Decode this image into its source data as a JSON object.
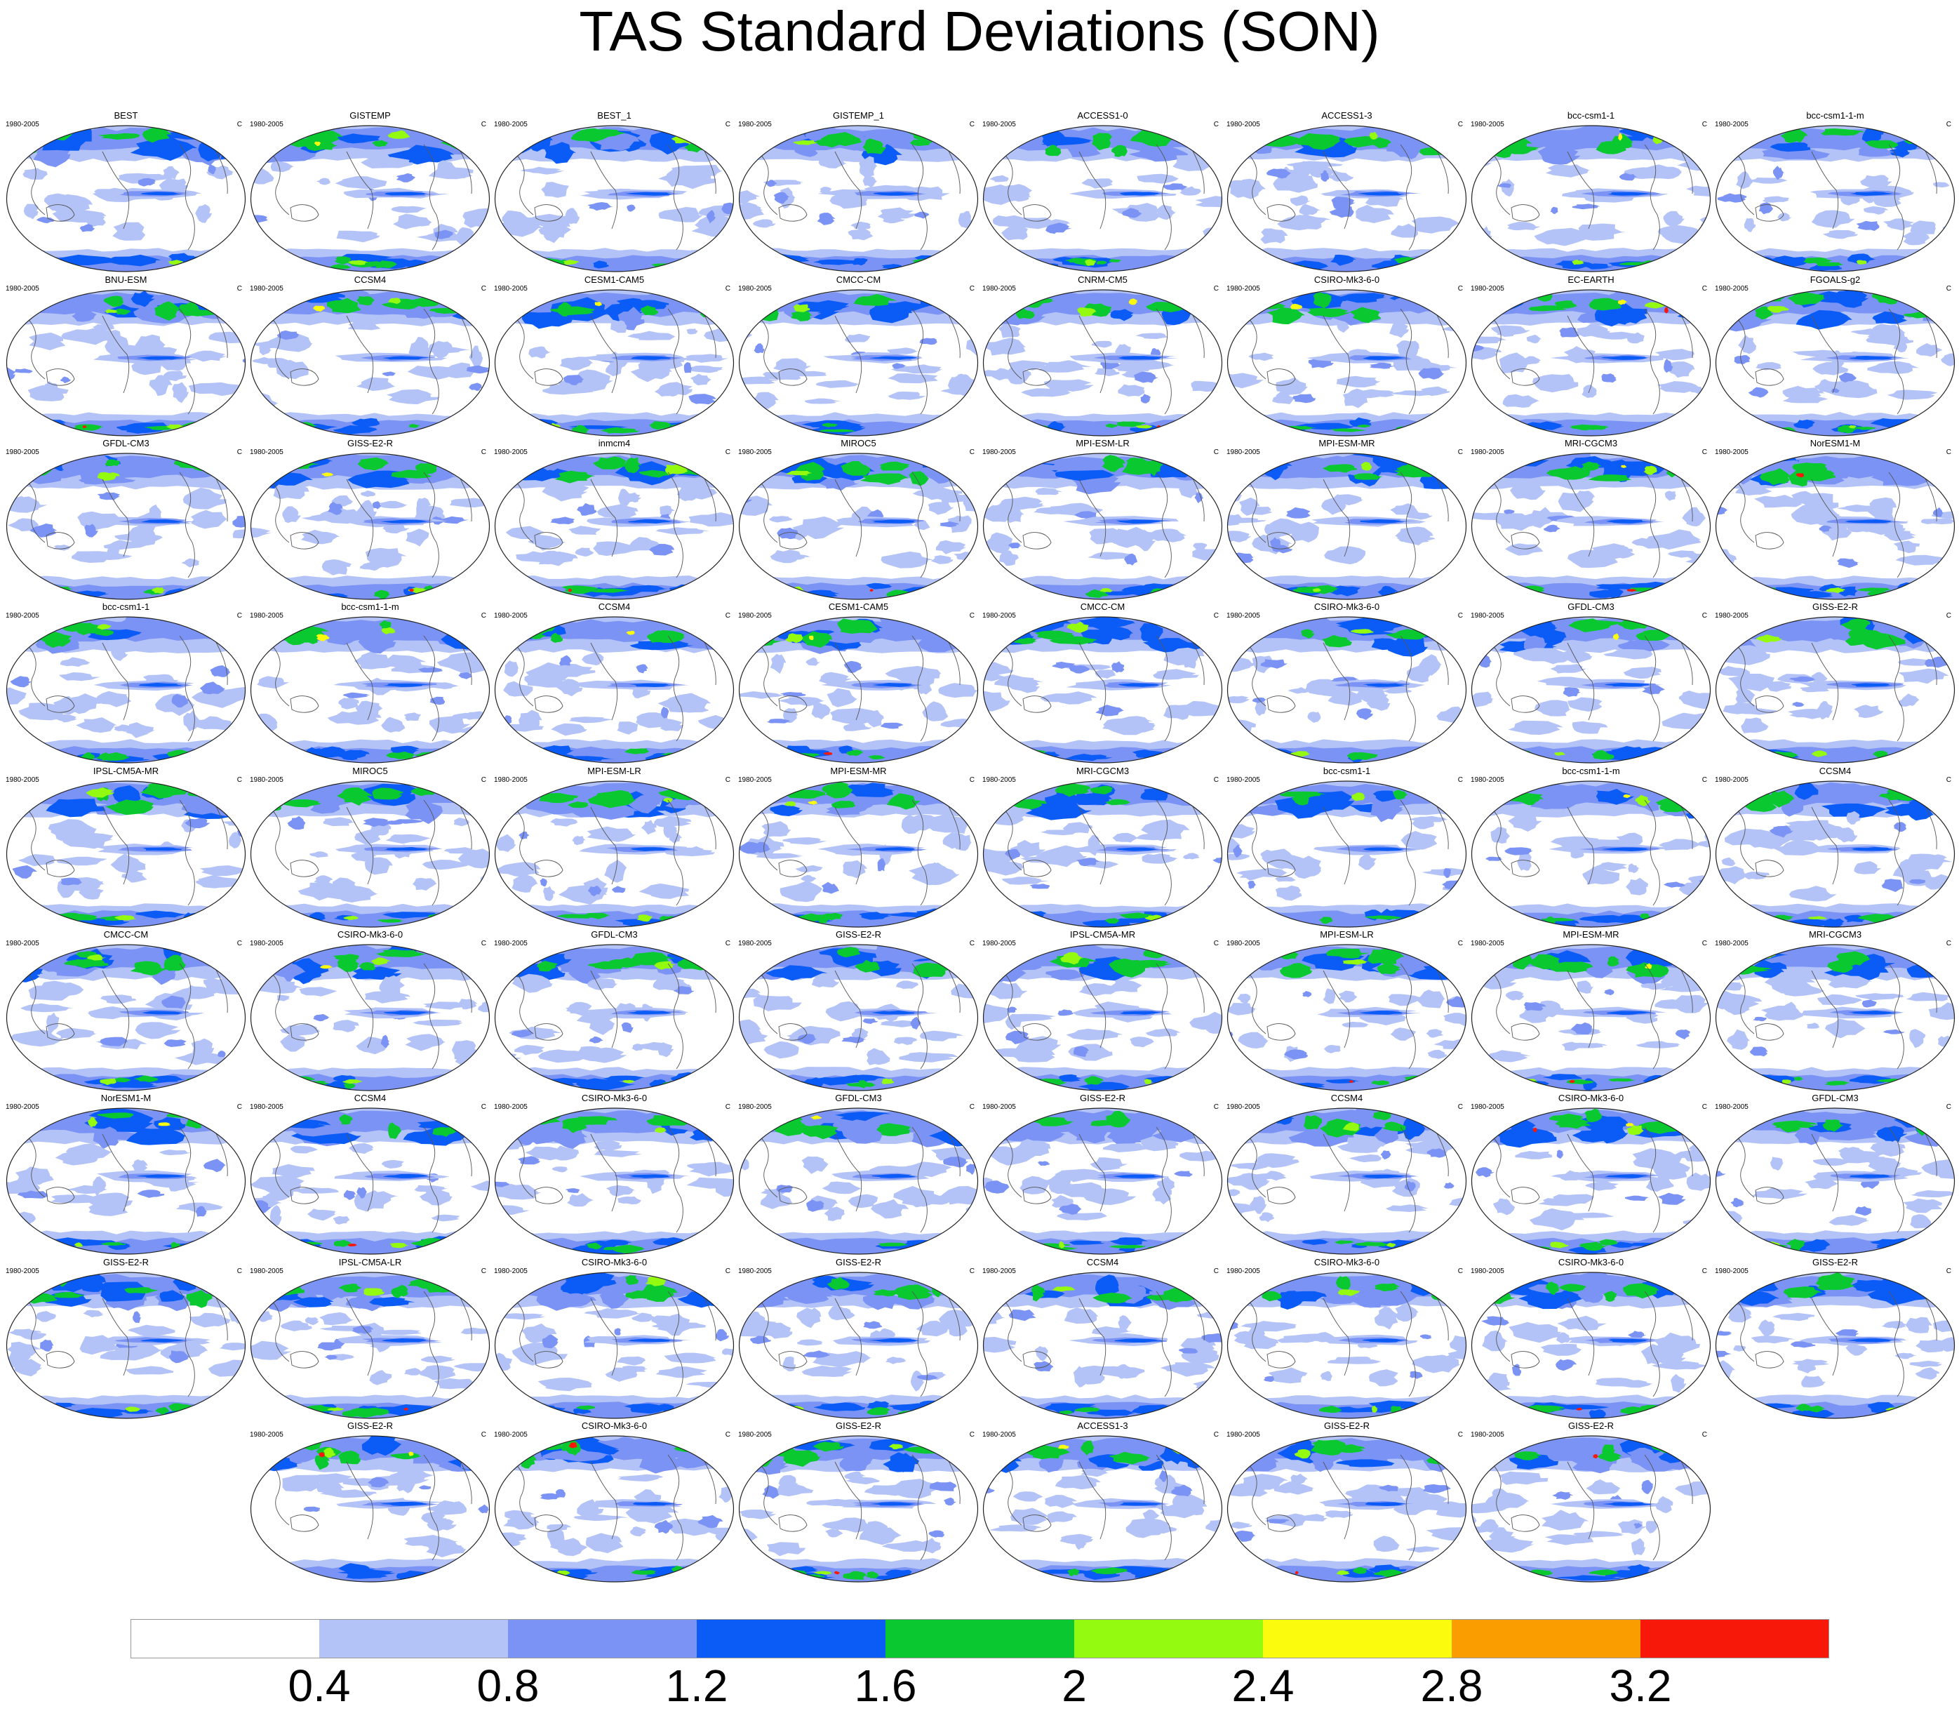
{
  "figure": {
    "title": "TAS Standard Deviations (SON)"
  },
  "chart_data": {
    "type": "heatmap",
    "title": "TAS Standard Deviations (SON)",
    "projection": "Robinson (Pacific-centred)",
    "period": "1980-2005",
    "units": "C",
    "panels": [
      "BEST",
      "GISTEMP",
      "BEST_1",
      "GISTEMP_1",
      "ACCESS1-0",
      "ACCESS1-3",
      "bcc-csm1-1",
      "bcc-csm1-1-m",
      "BNU-ESM",
      "CCSM4",
      "CESM1-CAM5",
      "CMCC-CM",
      "CNRM-CM5",
      "CSIRO-Mk3-6-0",
      "EC-EARTH",
      "FGOALS-g2",
      "GFDL-CM3",
      "GISS-E2-R",
      "inmcm4",
      "MIROC5",
      "MPI-ESM-LR",
      "MPI-ESM-MR",
      "MRI-CGCM3",
      "NorESM1-M",
      "bcc-csm1-1",
      "bcc-csm1-1-m",
      "CCSM4",
      "CESM1-CAM5",
      "CMCC-CM",
      "CSIRO-Mk3-6-0",
      "GFDL-CM3",
      "GISS-E2-R",
      "IPSL-CM5A-MR",
      "MIROC5",
      "MPI-ESM-LR",
      "MPI-ESM-MR",
      "MRI-CGCM3",
      "bcc-csm1-1",
      "bcc-csm1-1-m",
      "CCSM4",
      "CMCC-CM",
      "CSIRO-Mk3-6-0",
      "GFDL-CM3",
      "GISS-E2-R",
      "IPSL-CM5A-MR",
      "MPI-ESM-LR",
      "MPI-ESM-MR",
      "MRI-CGCM3",
      "NorESM1-M",
      "CCSM4",
      "CSIRO-Mk3-6-0",
      "GFDL-CM3",
      "GISS-E2-R",
      "CCSM4",
      "CSIRO-Mk3-6-0",
      "GFDL-CM3",
      "GISS-E2-R",
      "IPSL-CM5A-LR",
      "CSIRO-Mk3-6-0",
      "GISS-E2-R",
      "CCSM4",
      "CSIRO-Mk3-6-0",
      "CSIRO-Mk3-6-0",
      "GISS-E2-R",
      "GISS-E2-R",
      "CSIRO-Mk3-6-0",
      "GISS-E2-R",
      "ACCESS1-3",
      "GISS-E2-R",
      "GISS-E2-R"
    ],
    "colorbar": {
      "levels": [
        0.4,
        0.8,
        1.2,
        1.6,
        2,
        2.4,
        2.8,
        3.2
      ],
      "labels": [
        "0.4",
        "0.8",
        "1.2",
        "1.6",
        "2",
        "2.4",
        "2.8",
        "3.2"
      ],
      "colors": [
        "#ffffff",
        "#b4c3f7",
        "#7b93f4",
        "#0b5cf7",
        "#0ac930",
        "#93fa10",
        "#fbfc0d",
        "#fa9d00",
        "#f7180a"
      ]
    },
    "legend_placement": "bottom",
    "grid": false
  }
}
